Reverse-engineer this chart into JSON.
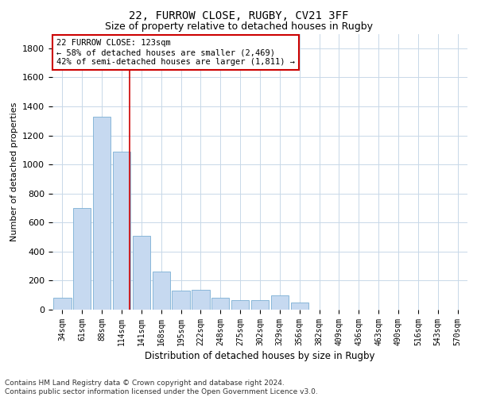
{
  "title1": "22, FURROW CLOSE, RUGBY, CV21 3FF",
  "title2": "Size of property relative to detached houses in Rugby",
  "xlabel": "Distribution of detached houses by size in Rugby",
  "ylabel": "Number of detached properties",
  "annotation_text": "22 FURROW CLOSE: 123sqm\n← 58% of detached houses are smaller (2,469)\n42% of semi-detached houses are larger (1,811) →",
  "footer": "Contains HM Land Registry data © Crown copyright and database right 2024.\nContains public sector information licensed under the Open Government Licence v3.0.",
  "categories": [
    "34sqm",
    "61sqm",
    "88sqm",
    "114sqm",
    "141sqm",
    "168sqm",
    "195sqm",
    "222sqm",
    "248sqm",
    "275sqm",
    "302sqm",
    "329sqm",
    "356sqm",
    "382sqm",
    "409sqm",
    "436sqm",
    "463sqm",
    "490sqm",
    "516sqm",
    "543sqm",
    "570sqm"
  ],
  "values": [
    80,
    700,
    1330,
    1090,
    510,
    265,
    130,
    135,
    80,
    65,
    65,
    100,
    50,
    0,
    0,
    0,
    0,
    0,
    0,
    0,
    0
  ],
  "bar_color": "#c6d9f0",
  "bar_edge_color": "#7bafd4",
  "vline_color": "#cc0000",
  "vline_pos": 3.42,
  "ylim": [
    0,
    1900
  ],
  "yticks": [
    0,
    200,
    400,
    600,
    800,
    1000,
    1200,
    1400,
    1600,
    1800
  ],
  "annotation_box_color": "#cc0000",
  "annotation_bg": "#ffffff",
  "title1_fontsize": 10,
  "title2_fontsize": 9
}
